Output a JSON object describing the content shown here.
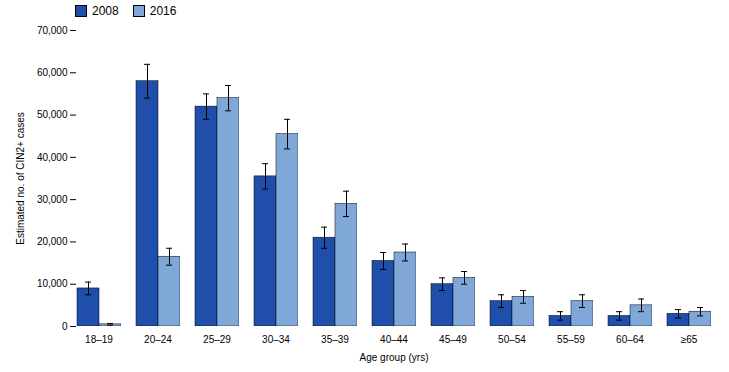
{
  "chart_data": {
    "type": "bar",
    "categories": [
      "18–19",
      "20–24",
      "25–29",
      "30–34",
      "35–39",
      "40–44",
      "45–49",
      "50–54",
      "55–59",
      "60–64",
      "≥65"
    ],
    "series": [
      {
        "name": "2008",
        "color": "#1f4faa",
        "values": [
          9000,
          58000,
          52000,
          35500,
          21000,
          15500,
          10000,
          6000,
          2500,
          2500,
          3000
        ],
        "error_lo": [
          1500,
          4000,
          3000,
          3000,
          2500,
          2000,
          1500,
          1500,
          1000,
          1000,
          1000
        ],
        "error_hi": [
          1500,
          4000,
          3000,
          3000,
          2500,
          2000,
          1500,
          1500,
          1000,
          1000,
          1000
        ]
      },
      {
        "name": "2016",
        "color": "#7fa8d8",
        "values": [
          500,
          16500,
          54000,
          45500,
          29000,
          17500,
          11500,
          7000,
          6000,
          5000,
          3500
        ],
        "error_lo": [
          200,
          2000,
          3000,
          3500,
          3000,
          2000,
          1500,
          1500,
          1500,
          1500,
          1000
        ],
        "error_hi": [
          200,
          2000,
          3000,
          3500,
          3000,
          2000,
          1500,
          1500,
          1500,
          1500,
          1000
        ]
      }
    ],
    "xlabel": "Age group (yrs)",
    "ylabel": "Estimated no. of CIN2+ cases",
    "ylim": [
      0,
      70000
    ],
    "yticks": [
      0,
      {
        "value": 10000,
        "label": "10,000"
      },
      {
        "value": 20000,
        "label": "20,000"
      },
      {
        "value": 30000,
        "label": "30,000"
      },
      {
        "value": 40000,
        "label": "40,000"
      },
      {
        "value": 50000,
        "label": "50,000"
      },
      {
        "value": 60000,
        "label": "60,000"
      },
      {
        "value": 70000,
        "label": "70,000"
      }
    ],
    "legend": "upper left",
    "grid": false
  }
}
